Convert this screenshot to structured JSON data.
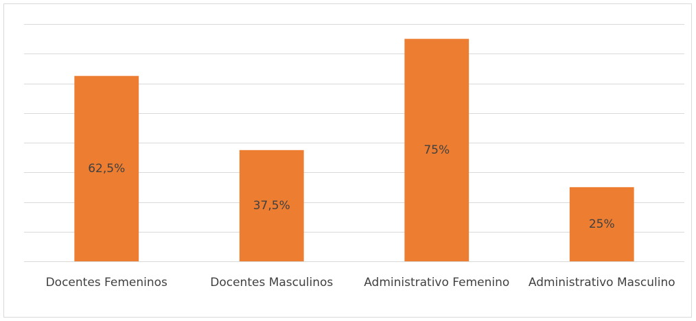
{
  "chart_data": {
    "type": "bar",
    "categories": [
      "Docentes Femeninos",
      "Docentes Masculinos",
      "Administrativo Femenino",
      "Administrativo Masculino"
    ],
    "values": [
      62.5,
      37.5,
      75,
      25
    ],
    "value_labels": [
      "62,5%",
      "37,5%",
      "75%",
      "25%"
    ],
    "color": "#ed7d31",
    "ylim": [
      0,
      80
    ],
    "yticks": [
      0,
      10,
      20,
      30,
      40,
      50,
      60,
      70,
      80
    ],
    "grid": true
  }
}
